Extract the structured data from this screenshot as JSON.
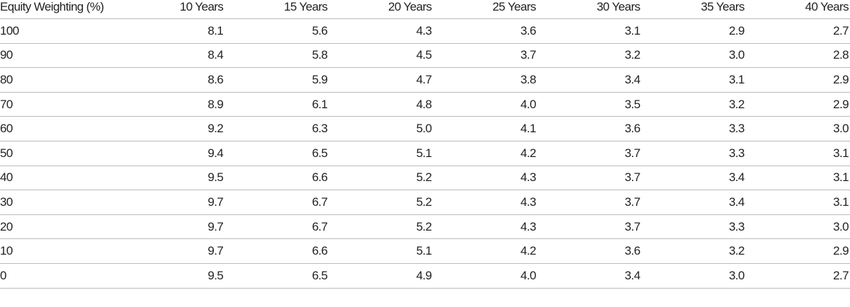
{
  "table": {
    "header": [
      "Equity Weighting (%)",
      "10 Years",
      "15 Years",
      "20 Years",
      "25 Years",
      "30 Years",
      "35 Years",
      "40 Years"
    ],
    "rows": [
      [
        "100",
        "8.1",
        "5.6",
        "4.3",
        "3.6",
        "3.1",
        "2.9",
        "2.7"
      ],
      [
        "90",
        "8.4",
        "5.8",
        "4.5",
        "3.7",
        "3.2",
        "3.0",
        "2.8"
      ],
      [
        "80",
        "8.6",
        "5.9",
        "4.7",
        "3.8",
        "3.4",
        "3.1",
        "2.9"
      ],
      [
        "70",
        "8.9",
        "6.1",
        "4.8",
        "4.0",
        "3.5",
        "3.2",
        "2.9"
      ],
      [
        "60",
        "9.2",
        "6.3",
        "5.0",
        "4.1",
        "3.6",
        "3.3",
        "3.0"
      ],
      [
        "50",
        "9.4",
        "6.5",
        "5.1",
        "4.2",
        "3.7",
        "3.3",
        "3.1"
      ],
      [
        "40",
        "9.5",
        "6.6",
        "5.2",
        "4.3",
        "3.7",
        "3.4",
        "3.1"
      ],
      [
        "30",
        "9.7",
        "6.7",
        "5.2",
        "4.3",
        "3.7",
        "3.4",
        "3.1"
      ],
      [
        "20",
        "9.7",
        "6.7",
        "5.2",
        "4.3",
        "3.7",
        "3.3",
        "3.0"
      ],
      [
        "10",
        "9.7",
        "6.6",
        "5.1",
        "4.2",
        "3.6",
        "3.2",
        "2.9"
      ],
      [
        "0",
        "9.5",
        "6.5",
        "4.9",
        "4.0",
        "3.4",
        "3.0",
        "2.7"
      ]
    ]
  }
}
